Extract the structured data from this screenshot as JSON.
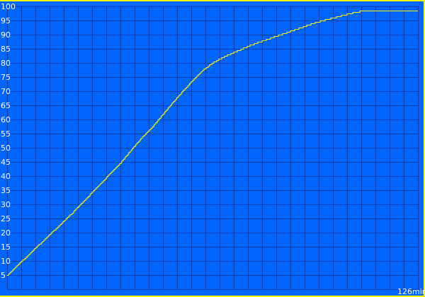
{
  "chart_data": {
    "type": "line",
    "title": "",
    "xlabel": "",
    "ylabel": "",
    "x_unit_label": "126min",
    "xlim": [
      0,
      126
    ],
    "ylim": [
      0,
      100
    ],
    "yticks": [
      "5",
      "10",
      "15",
      "20",
      "25",
      "30",
      "35",
      "40",
      "45",
      "50",
      "55",
      "60",
      "65",
      "70",
      "75",
      "80",
      "85",
      "90",
      "95",
      "100"
    ],
    "grid": true,
    "legend": "none",
    "colors": {
      "background": "#0064ff",
      "grid": "#0a3cb4",
      "line": "#ffff00",
      "border": "#ffff00",
      "text": "#ffffff"
    },
    "series": [
      {
        "x": [
          0,
          5,
          10,
          15,
          20,
          25,
          30,
          35,
          40,
          45,
          50,
          55,
          60,
          63,
          66,
          70,
          75,
          80,
          85,
          90,
          95,
          100,
          105,
          109,
          126
        ],
        "y": [
          5,
          10.5,
          16,
          21.5,
          27,
          33,
          39,
          45,
          52,
          58,
          65,
          71.5,
          77.5,
          80,
          82,
          84,
          86.5,
          88.5,
          90.5,
          92.5,
          94.5,
          96,
          97.5,
          98.5,
          98.5
        ]
      }
    ]
  }
}
